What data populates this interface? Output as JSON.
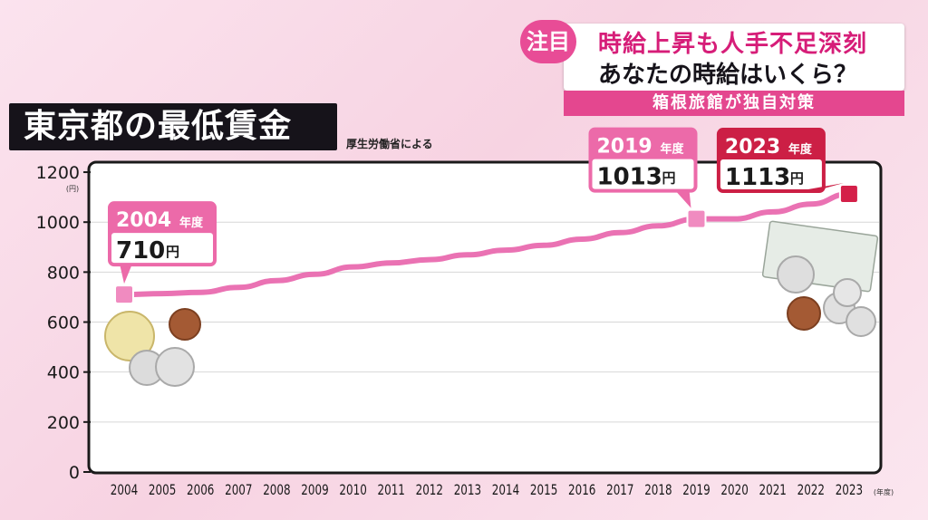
{
  "title": "東京都の最低賃金",
  "source": "厚生労働省による",
  "banner": {
    "badge": "注目",
    "headline": "時給上昇も人手不足深刻",
    "subheadline": "あなたの時給はいくら？",
    "subbar": "箱根旅館が独自対策"
  },
  "colors": {
    "line": "#ea72b3",
    "point": "#f08bc0",
    "last_point": "#d42049",
    "label_pink": "#ec6aa9",
    "label_red": "#cc1f45"
  },
  "chart_data": {
    "type": "line",
    "title": "東京都の最低賃金",
    "ylabel": "(円)",
    "xlabel": "(年度)",
    "ylim": [
      0,
      1200
    ],
    "yticks": [
      0,
      200,
      400,
      600,
      800,
      1000,
      1200
    ],
    "x": [
      2004,
      2005,
      2006,
      2007,
      2008,
      2009,
      2010,
      2011,
      2012,
      2013,
      2014,
      2015,
      2016,
      2017,
      2018,
      2019,
      2020,
      2021,
      2022,
      2023
    ],
    "series": [
      {
        "values": [
          710,
          714,
          719,
          739,
          766,
          791,
          821,
          837,
          850,
          869,
          888,
          907,
          932,
          958,
          985,
          1013,
          1013,
          1041,
          1072,
          1113
        ]
      }
    ],
    "annotations": [
      {
        "x": 2004,
        "year_label": "2004",
        "year_suffix": "年度",
        "value_label": "710",
        "unit": "円",
        "style": "pink"
      },
      {
        "x": 2019,
        "year_label": "2019",
        "year_suffix": "年度",
        "value_label": "1013",
        "unit": "円",
        "style": "pink"
      },
      {
        "x": 2023,
        "year_label": "2023",
        "year_suffix": "年度",
        "value_label": "1113",
        "unit": "円",
        "style": "red"
      }
    ],
    "grid": true
  }
}
